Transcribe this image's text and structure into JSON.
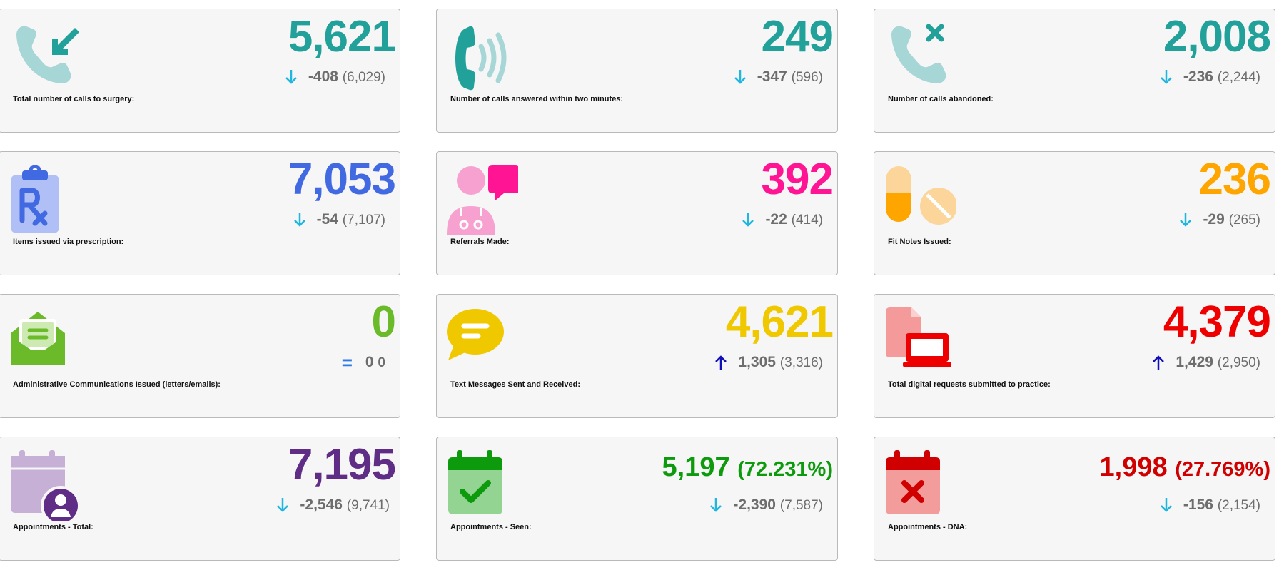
{
  "cards": [
    {
      "label": "Total number of calls to surgery:",
      "value": "5,621",
      "change": "-408",
      "previous": "(6,029)",
      "trend": "down",
      "color": "#22a09a",
      "icon": "incoming-call-icon"
    },
    {
      "label": "Number of calls answered within two minutes:",
      "value": "249",
      "change": "-347",
      "previous": "(596)",
      "trend": "down",
      "color": "#22a09a",
      "icon": "ringing-phone-icon"
    },
    {
      "label": "Number of calls abandoned:",
      "value": "2,008",
      "change": "-236",
      "previous": "(2,244)",
      "trend": "down",
      "color": "#22a09a",
      "icon": "missed-call-icon"
    },
    {
      "label": "Items issued via prescription:",
      "value": "7,053",
      "change": "-54",
      "previous": "(7,107)",
      "trend": "down",
      "color": "#4169e1",
      "icon": "prescription-clipboard-icon"
    },
    {
      "label": "Referrals Made:",
      "value": "392",
      "change": "-22",
      "previous": "(414)",
      "trend": "down",
      "color": "#ff1493",
      "icon": "doctor-chat-icon"
    },
    {
      "label": "Fit Notes Issued:",
      "value": "236",
      "change": "-29",
      "previous": "(265)",
      "trend": "down",
      "color": "#ffa500",
      "icon": "pills-icon"
    },
    {
      "label": "Administrative Communications Issued (letters/emails):",
      "value": "0",
      "change": "0",
      "previous": "0",
      "trend": "equal",
      "color": "#6aba2a",
      "icon": "open-envelope-icon"
    },
    {
      "label": "Text Messages Sent and Received:",
      "value": "4,621",
      "change": "1,305",
      "previous": "(3,316)",
      "trend": "up",
      "color": "#f0c800",
      "icon": "speech-bubble-icon"
    },
    {
      "label": "Total digital requests submitted to practice:",
      "value": "4,379",
      "change": "1,429",
      "previous": "(2,950)",
      "trend": "up",
      "color": "#ee0000",
      "icon": "digital-request-icon"
    },
    {
      "label": "Appointments - Total:",
      "value": "7,195",
      "change": "-2,546",
      "previous": "(9,741)",
      "trend": "down",
      "color": "#5f2d86",
      "icon": "calendar-user-icon"
    },
    {
      "label": "Appointments - Seen:",
      "value": "5,197",
      "percent": "(72.231%)",
      "change": "-2,390",
      "previous": "(7,587)",
      "trend": "down",
      "color": "#0d9a0d",
      "icon": "calendar-check-icon"
    },
    {
      "label": "Appointments - DNA:",
      "value": "1,998",
      "percent": "(27.769%)",
      "change": "-156",
      "previous": "(2,154)",
      "trend": "down",
      "color": "#d00000",
      "icon": "calendar-cross-icon"
    }
  ],
  "colors": {
    "arrow_down": "#1fb6e0",
    "arrow_up": "#1010b8",
    "equal": "#2c7be5"
  }
}
